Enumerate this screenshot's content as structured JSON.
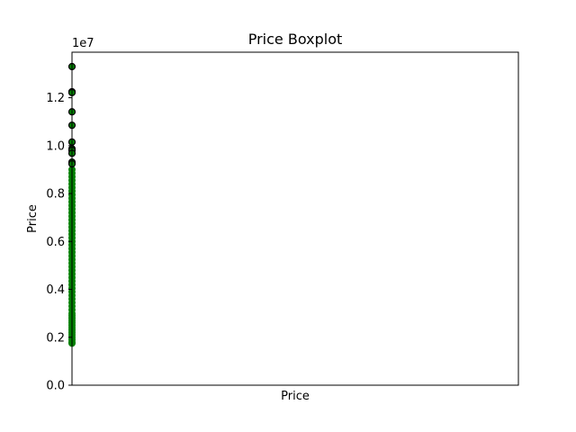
{
  "chart_data": {
    "type": "boxplot",
    "title": "Price Boxplot",
    "xlabel": "Price",
    "ylabel": "Price",
    "y_offset_label": "1e7",
    "ylim": [
      0,
      13900000
    ],
    "yticks": [
      0,
      2000000,
      4000000,
      6000000,
      8000000,
      10000000,
      12000000
    ],
    "yticklabels": [
      "0.0",
      "0.2",
      "0.4",
      "0.6",
      "0.8",
      "1.0",
      "1.2"
    ],
    "grid": false,
    "legend": "none",
    "colors": {
      "points": "#008000",
      "outliers": "#000000",
      "axes": "#000000"
    },
    "box_points": [
      1750000,
      1800000,
      1900000,
      2000000,
      2100000,
      2200000,
      2300000,
      2400000,
      2500000,
      2600000,
      2700000,
      2800000,
      2900000,
      3000000,
      3150000,
      3300000,
      3450000,
      3600000,
      3750000,
      3900000,
      4050000,
      4200000,
      4350000,
      4500000,
      4650000,
      4800000,
      4950000,
      5100000,
      5250000,
      5400000,
      5550000,
      5700000,
      5850000,
      6000000,
      6150000,
      6300000,
      6450000,
      6600000,
      6750000,
      6900000,
      7050000,
      7200000,
      7350000,
      7500000,
      7650000,
      7800000,
      7950000,
      8100000,
      8250000,
      8400000,
      8550000,
      8700000,
      8850000,
      9000000
    ],
    "outliers": [
      13300000,
      12250000,
      12215000,
      11410000,
      10850000,
      10150000,
      9870000,
      9800000,
      9681000,
      9310000,
      9240000
    ]
  }
}
